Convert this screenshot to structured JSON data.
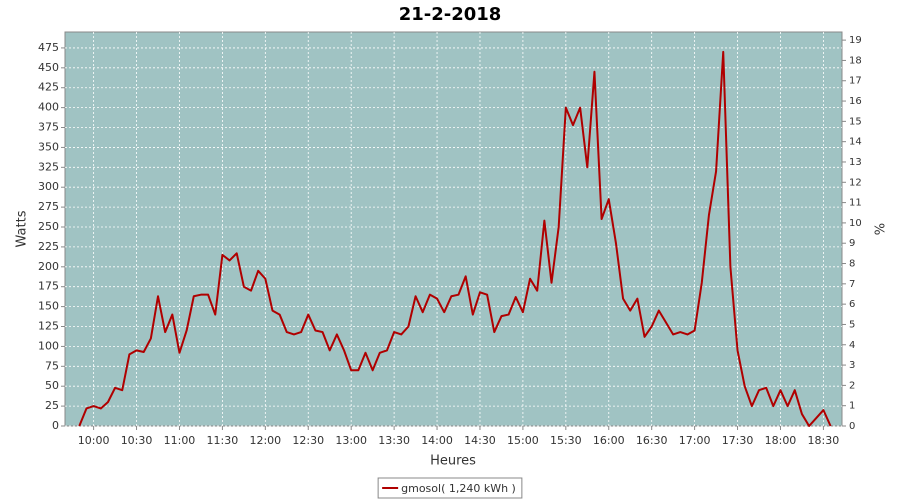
{
  "chart_data": {
    "type": "line",
    "title": "21-2-2018",
    "x_label": "Heures",
    "y_label": "Watts",
    "y2_label": "%",
    "x": [
      590,
      595,
      600,
      605,
      610,
      615,
      620,
      625,
      630,
      635,
      640,
      645,
      650,
      655,
      660,
      665,
      670,
      675,
      680,
      685,
      690,
      695,
      700,
      705,
      710,
      715,
      720,
      725,
      730,
      735,
      740,
      745,
      750,
      755,
      760,
      765,
      770,
      775,
      780,
      785,
      790,
      795,
      800,
      805,
      810,
      815,
      820,
      825,
      830,
      835,
      840,
      845,
      850,
      855,
      860,
      865,
      870,
      875,
      880,
      885,
      890,
      895,
      900,
      905,
      910,
      915,
      920,
      925,
      930,
      935,
      940,
      945,
      950,
      955,
      960,
      965,
      970,
      975,
      980,
      985,
      990,
      995,
      1000,
      1005,
      1010,
      1015,
      1020,
      1025,
      1030,
      1035,
      1040,
      1045,
      1050,
      1055,
      1060,
      1065,
      1070,
      1075,
      1080,
      1085,
      1090,
      1095,
      1100,
      1105,
      1110,
      1115
    ],
    "series": [
      {
        "name": "gmosol( 1,240 kWh )",
        "color": "#b00000",
        "values": [
          0,
          22,
          25,
          22,
          30,
          48,
          45,
          90,
          95,
          93,
          110,
          163,
          118,
          140,
          92,
          120,
          163,
          165,
          165,
          140,
          215,
          208,
          217,
          175,
          170,
          195,
          185,
          145,
          140,
          118,
          115,
          118,
          140,
          120,
          118,
          95,
          115,
          95,
          70,
          70,
          92,
          70,
          92,
          95,
          118,
          115,
          125,
          163,
          143,
          165,
          160,
          143,
          163,
          165,
          188,
          140,
          168,
          165,
          118,
          138,
          140,
          162,
          143,
          185,
          170,
          258,
          180,
          250,
          400,
          378,
          400,
          325,
          445,
          260,
          285,
          230,
          160,
          145,
          160,
          112,
          125,
          145,
          130,
          115,
          118,
          115,
          120,
          180,
          265,
          320,
          470,
          200,
          95,
          50,
          25,
          45,
          48,
          25,
          45,
          25,
          45,
          15,
          0,
          10,
          20,
          0
        ]
      }
    ],
    "xlim": [
      580,
      1123
    ],
    "xticks": [
      {
        "value": 600,
        "label": "10:00"
      },
      {
        "value": 630,
        "label": "10:30"
      },
      {
        "value": 660,
        "label": "11:00"
      },
      {
        "value": 690,
        "label": "11:30"
      },
      {
        "value": 720,
        "label": "12:00"
      },
      {
        "value": 750,
        "label": "12:30"
      },
      {
        "value": 780,
        "label": "13:00"
      },
      {
        "value": 810,
        "label": "13:30"
      },
      {
        "value": 840,
        "label": "14:00"
      },
      {
        "value": 870,
        "label": "14:30"
      },
      {
        "value": 900,
        "label": "15:00"
      },
      {
        "value": 930,
        "label": "15:30"
      },
      {
        "value": 960,
        "label": "16:00"
      },
      {
        "value": 990,
        "label": "16:30"
      },
      {
        "value": 1020,
        "label": "17:00"
      },
      {
        "value": 1050,
        "label": "17:30"
      },
      {
        "value": 1080,
        "label": "18:00"
      },
      {
        "value": 1110,
        "label": "18:30"
      }
    ],
    "ylim": [
      0,
      495
    ],
    "yticks": [
      0,
      25,
      50,
      75,
      100,
      125,
      150,
      175,
      200,
      225,
      250,
      275,
      300,
      325,
      350,
      375,
      400,
      425,
      450,
      475
    ],
    "y2lim": [
      0,
      19.4
    ],
    "y2ticks": [
      0,
      1,
      2,
      3,
      4,
      5,
      6,
      7,
      8,
      9,
      10,
      11,
      12,
      13,
      14,
      15,
      16,
      17,
      18,
      19
    ],
    "grid": true,
    "plot_background": "#a0c3c3",
    "legend": "bottom"
  }
}
